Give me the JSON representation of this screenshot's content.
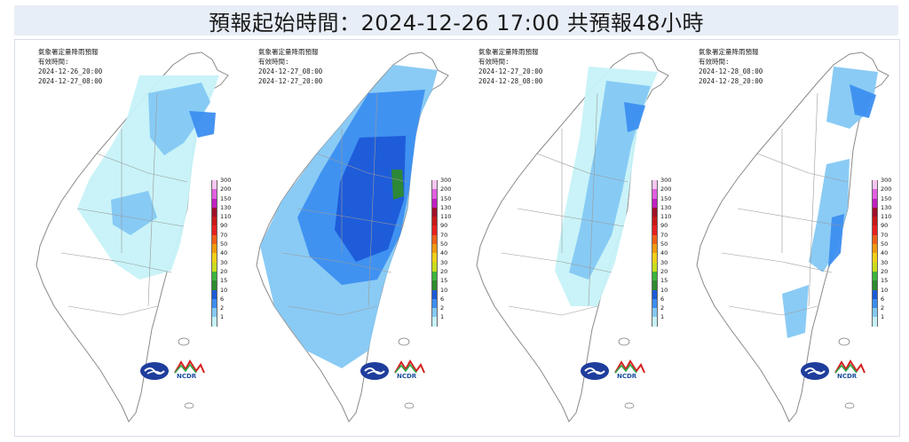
{
  "header": {
    "title": "預報起始時間：2024-12-26 17:00  共預報48小時"
  },
  "panels": [
    {
      "caption_title": "氣象署定量降雨預報",
      "caption_label": "有效時間:",
      "valid_start": "2024-12-26_20:00",
      "valid_end": "2024-12-27_08:00",
      "intensity": "light"
    },
    {
      "caption_title": "氣象署定量降雨預報",
      "caption_label": "有效時間:",
      "valid_start": "2024-12-27_08:00",
      "valid_end": "2024-12-27_20:00",
      "intensity": "heavy"
    },
    {
      "caption_title": "氣象署定量降雨預報",
      "caption_label": "有效時間:",
      "valid_start": "2024-12-27_20:00",
      "valid_end": "2024-12-28_08:00",
      "intensity": "moderate"
    },
    {
      "caption_title": "氣象署定量降雨預報",
      "caption_label": "有效時間:",
      "valid_start": "2024-12-28_08:00",
      "valid_end": "2024-12-28_20:00",
      "intensity": "scattered"
    }
  ],
  "scale": {
    "levels": [
      "300",
      "200",
      "150",
      "130",
      "110",
      "90",
      "70",
      "50",
      "40",
      "30",
      "20",
      "15",
      "10",
      "6",
      "2",
      "1"
    ],
    "colors": [
      "#f7c6f0",
      "#e060e0",
      "#c020c0",
      "#a0102a",
      "#c81818",
      "#e82020",
      "#f06018",
      "#f09a10",
      "#f0d018",
      "#c8dc1c",
      "#3cb43c",
      "#2e8a2e",
      "#1c5ad8",
      "#3c8ef0",
      "#84c8f4",
      "#c6f2f8"
    ]
  },
  "logos": {
    "agency_icon": "cwa-logo-icon",
    "partner_text": "NCDR"
  },
  "colors": {
    "land": "#ffffff",
    "boundary": "#8a8a8a",
    "rain_light": "#c6f2f8",
    "rain_mid": "#84c8f4",
    "rain_heavy": "#3c8ef0",
    "rain_very_heavy": "#1c5ad8",
    "rain_green": "#2e8a2e"
  }
}
